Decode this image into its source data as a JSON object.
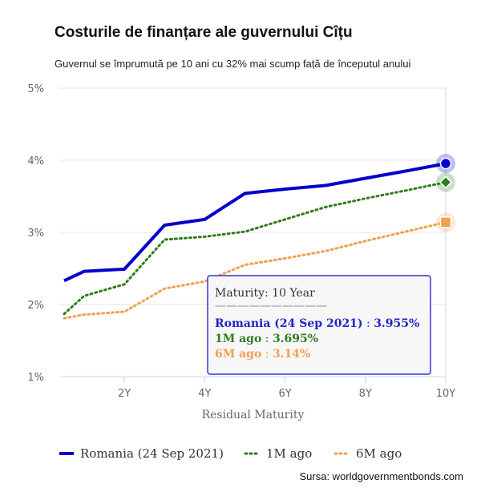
{
  "header": {
    "title": "Costurile de finanțare ale guvernului Cîțu",
    "subtitle": "Guvernul se împrumută pe 10 ani cu 32% mai scump față de începutul anului"
  },
  "footer": {
    "source": "Sursa: worldgovernmentbonds.com"
  },
  "tooltip": {
    "header_key": "Maturity",
    "header_value": "10 Year",
    "separator": "——————————",
    "rows": [
      {
        "name": "Romania (24 Sep 2021)",
        "value": "3.955%",
        "color": "#2222cc"
      },
      {
        "name": "1M ago",
        "value": "3.695%",
        "color": "#2e7d1e"
      },
      {
        "name": "6M ago",
        "value": "3.14%",
        "color": "#f0a050"
      }
    ]
  },
  "chart_data": {
    "type": "line",
    "title": "Costurile de finanțare ale guvernului Cîțu",
    "subtitle": "Guvernul se împrumută pe 10 ani cu 32% mai scump față de începutul anului",
    "xlabel": "Residual Maturity",
    "ylabel": "",
    "xlim": [
      0.4,
      10
    ],
    "ylim": [
      1,
      5
    ],
    "x_ticks": [
      2,
      4,
      6,
      8,
      10
    ],
    "x_tick_labels": [
      "2Y",
      "4Y",
      "6Y",
      "8Y",
      "10Y"
    ],
    "y_ticks": [
      1,
      2,
      3,
      4,
      5
    ],
    "y_tick_labels": [
      "1%",
      "2%",
      "3%",
      "4%",
      "5%"
    ],
    "grid": "horizontal",
    "legend_position": "bottom",
    "series": [
      {
        "name": "Romania (24 Sep 2021)",
        "color": "#0000cc",
        "style": "solid",
        "x": [
          0.5,
          1,
          2,
          3,
          4,
          5,
          6,
          7,
          8,
          9,
          10
        ],
        "y": [
          2.33,
          2.46,
          2.49,
          3.1,
          3.18,
          3.54,
          3.6,
          3.65,
          3.75,
          3.85,
          3.955
        ]
      },
      {
        "name": "1M ago",
        "color": "#2e7d1e",
        "style": "dotted",
        "x": [
          0.5,
          1,
          2,
          3,
          4,
          5,
          6,
          7,
          8,
          9,
          10
        ],
        "y": [
          1.87,
          2.12,
          2.28,
          2.9,
          2.94,
          3.01,
          3.18,
          3.35,
          3.47,
          3.58,
          3.695
        ]
      },
      {
        "name": "6M ago",
        "color": "#f0a050",
        "style": "dotted",
        "x": [
          0.5,
          1,
          2,
          3,
          4,
          5,
          6,
          7,
          8,
          9,
          10
        ],
        "y": [
          1.81,
          1.86,
          1.9,
          2.22,
          2.32,
          2.55,
          2.64,
          2.74,
          2.88,
          3.01,
          3.14
        ]
      }
    ]
  }
}
